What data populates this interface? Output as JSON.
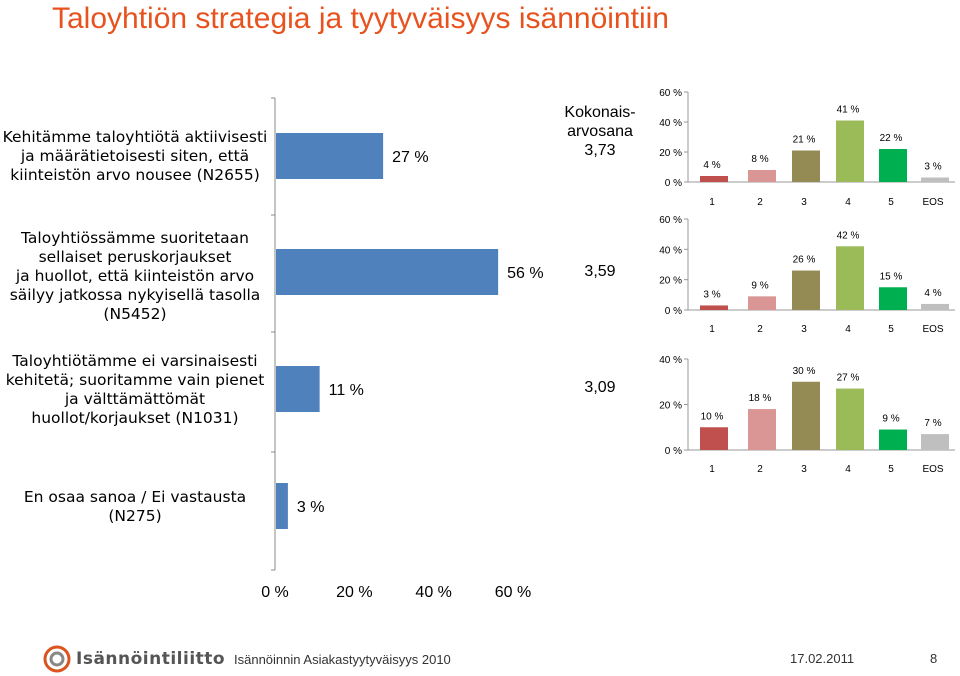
{
  "title": "Taloyhtiön strategia ja tyytyväisyys isännöintiin",
  "main_chart": {
    "type": "bar",
    "categories": [
      [
        "Kehitämme taloyhtiötä aktiivisesti",
        "ja määrätietoisesti siten, että",
        "kiinteistön arvo nousee (N2655)"
      ],
      [
        "Taloyhtiössämme suoritetaan",
        "sellaiset peruskorjaukset",
        "ja huollot, että kiinteistön arvo",
        "säilyy jatkossa nykyisellä tasolla",
        "(N5452)"
      ],
      [
        "Taloyhtiötämme ei varsinaisesti",
        "kehitetä; suoritamme vain pienet",
        "ja välttämättömät",
        "huollot/korjaukset (N1031)"
      ],
      [
        "En osaa sanoa / Ei vastausta",
        "(N275)"
      ]
    ],
    "values": [
      27,
      56,
      11,
      3
    ],
    "value_labels": [
      "27 %",
      "56 %",
      "11 %",
      "3 %"
    ],
    "xlim": [
      0,
      60
    ],
    "x_ticks": [
      "0 %",
      "20 %",
      "40 %",
      "60 %"
    ],
    "bar_color": "#4f81bd"
  },
  "scores": {
    "header": [
      "Kokonais-",
      "arvosana"
    ],
    "values": [
      "3,73",
      "3,59",
      "3,09"
    ]
  },
  "chart_data": [
    {
      "type": "bar",
      "categories": [
        "1",
        "2",
        "3",
        "4",
        "5",
        "EOS"
      ],
      "values": [
        4,
        8,
        21,
        41,
        22,
        3
      ],
      "value_labels": [
        "4 %",
        "8 %",
        "21 %",
        "41 %",
        "22 %",
        "3 %"
      ],
      "ylim": [
        0,
        60
      ],
      "y_ticks": [
        "0 %",
        "20 %",
        "40 %",
        "60 %"
      ],
      "y_tick_values": [
        0,
        20,
        40,
        60
      ]
    },
    {
      "type": "bar",
      "categories": [
        "1",
        "2",
        "3",
        "4",
        "5",
        "EOS"
      ],
      "values": [
        3,
        9,
        26,
        42,
        15,
        4
      ],
      "value_labels": [
        "3 %",
        "9 %",
        "26 %",
        "42 %",
        "15 %",
        "4 %"
      ],
      "ylim": [
        0,
        60
      ],
      "y_ticks": [
        "0 %",
        "20 %",
        "40 %",
        "60 %"
      ],
      "y_tick_values": [
        0,
        20,
        40,
        60
      ]
    },
    {
      "type": "bar",
      "categories": [
        "1",
        "2",
        "3",
        "4",
        "5",
        "EOS"
      ],
      "values": [
        10,
        18,
        30,
        27,
        9,
        7
      ],
      "value_labels": [
        "10 %",
        "18 %",
        "30 %",
        "27 %",
        "9 %",
        "7 %"
      ],
      "ylim": [
        0,
        40
      ],
      "y_ticks": [
        "0 %",
        "20 %",
        "40 %"
      ],
      "y_tick_values": [
        0,
        20,
        40
      ]
    }
  ],
  "category_colors": [
    "#c0504d",
    "#d99694",
    "#948a54",
    "#9bbb59",
    "#00b050",
    "#bfbfbf"
  ],
  "footer": {
    "logo_text": "Isännöintiliitto",
    "survey": "Isännöinnin Asiakastyytyväisyys 2010",
    "date": "17.02.2011",
    "page": "8"
  }
}
